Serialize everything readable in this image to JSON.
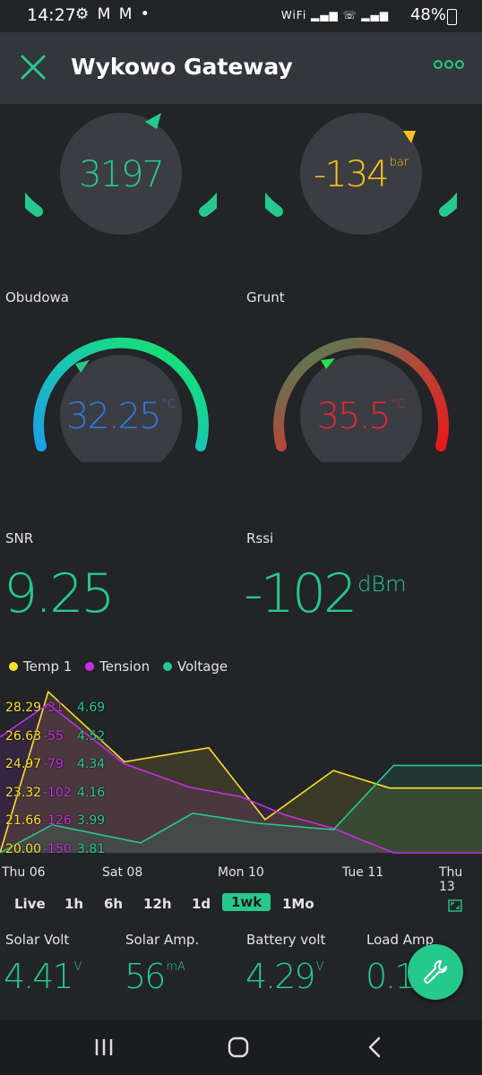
{
  "status_bar": {
    "time": "14:27",
    "left_icons": "⚙ M M •",
    "right_icons": "WiFi ▂▄▆ ☏ ▂▄▆",
    "battery": "48%"
  },
  "app_bar": {
    "title": "Wykowo Gateway",
    "close_icon": "close-icon",
    "more_icon": "more-dots-icon"
  },
  "colors": {
    "accent": "#26c98c",
    "background": "#222428",
    "appbar": "#33363b",
    "yellow": "#f7e02c",
    "magenta": "#c52ee6",
    "blue": "#2f77e0",
    "red": "#e62935"
  },
  "gauges_top": [
    {
      "value": "3197",
      "unit": "",
      "color": "#26c98c"
    },
    {
      "value": "-134",
      "unit": "bar",
      "color": "#f7c21c"
    }
  ],
  "gauges_mid": [
    {
      "label": "Obudowa",
      "value": "32.25",
      "unit": "°C",
      "color": "#2f77e0"
    },
    {
      "label": "Grunt",
      "value": "35.5",
      "unit": "°C",
      "color": "#e62935"
    }
  ],
  "values": {
    "snr": {
      "label": "SNR",
      "value": "9.25",
      "unit": ""
    },
    "rssi": {
      "label": "Rssi",
      "value": "-102",
      "unit": "dBm"
    }
  },
  "chart_data": {
    "type": "line",
    "legend": [
      "Temp 1",
      "Tension",
      "Voltage"
    ],
    "x_labels": [
      "Thu 06",
      "Sat 08",
      "Mon 10",
      "Tue 11",
      "Thu 13"
    ],
    "y_ticks": {
      "temp1": [
        "28.29",
        "26.63",
        "24.97",
        "23.32",
        "21.66",
        "20.00"
      ],
      "tension": [
        "-31",
        "-55",
        "-79",
        "-102",
        "-126",
        "-150"
      ],
      "voltage": [
        "4.69",
        "4.52",
        "4.34",
        "4.16",
        "3.99",
        "3.81"
      ]
    },
    "ylim": {
      "temp1": [
        20.0,
        28.29
      ],
      "tension": [
        -150,
        -31
      ],
      "voltage": [
        3.81,
        4.69
      ]
    },
    "series": [
      {
        "name": "Temp 1",
        "color": "#f7e02c",
        "x": [
          0.0,
          0.6,
          1.55,
          2.6,
          3.3,
          4.15,
          4.85,
          5.3,
          6.0
        ],
        "values": [
          20.0,
          29.2,
          25.2,
          26.0,
          21.9,
          24.7,
          23.7,
          23.7,
          23.7
        ]
      },
      {
        "name": "Tension",
        "color": "#c52ee6",
        "x": [
          0.0,
          0.6,
          1.55,
          2.35,
          3.0,
          3.55,
          4.15,
          4.9,
          5.4,
          6.0
        ],
        "values": [
          -55,
          -28,
          -77,
          -96,
          -104,
          -119,
          -130,
          -150,
          -150,
          -150
        ]
      },
      {
        "name": "Voltage",
        "color": "#26c98c",
        "x": [
          0.0,
          0.65,
          1.75,
          2.4,
          3.2,
          4.15,
          4.9,
          5.4,
          6.0
        ],
        "values": [
          3.81,
          3.98,
          3.87,
          4.05,
          3.99,
          3.95,
          4.34,
          4.34,
          4.34
        ]
      }
    ]
  },
  "periods": [
    "Live",
    "1h",
    "6h",
    "12h",
    "1d",
    "1wk",
    "1Mo"
  ],
  "active_period": "1wk",
  "bottom_values": [
    {
      "label": "Solar Volt",
      "value": "4.41",
      "unit": "V"
    },
    {
      "label": "Solar Amp.",
      "value": "56",
      "unit": "mA"
    },
    {
      "label": "Battery volt",
      "value": "4.29",
      "unit": "V"
    },
    {
      "label": "Load Amp",
      "value": "0.1",
      "unit": "m"
    }
  ],
  "fab_icon": "wrench-icon",
  "nav": [
    "recents-icon",
    "home-icon",
    "back-icon"
  ]
}
